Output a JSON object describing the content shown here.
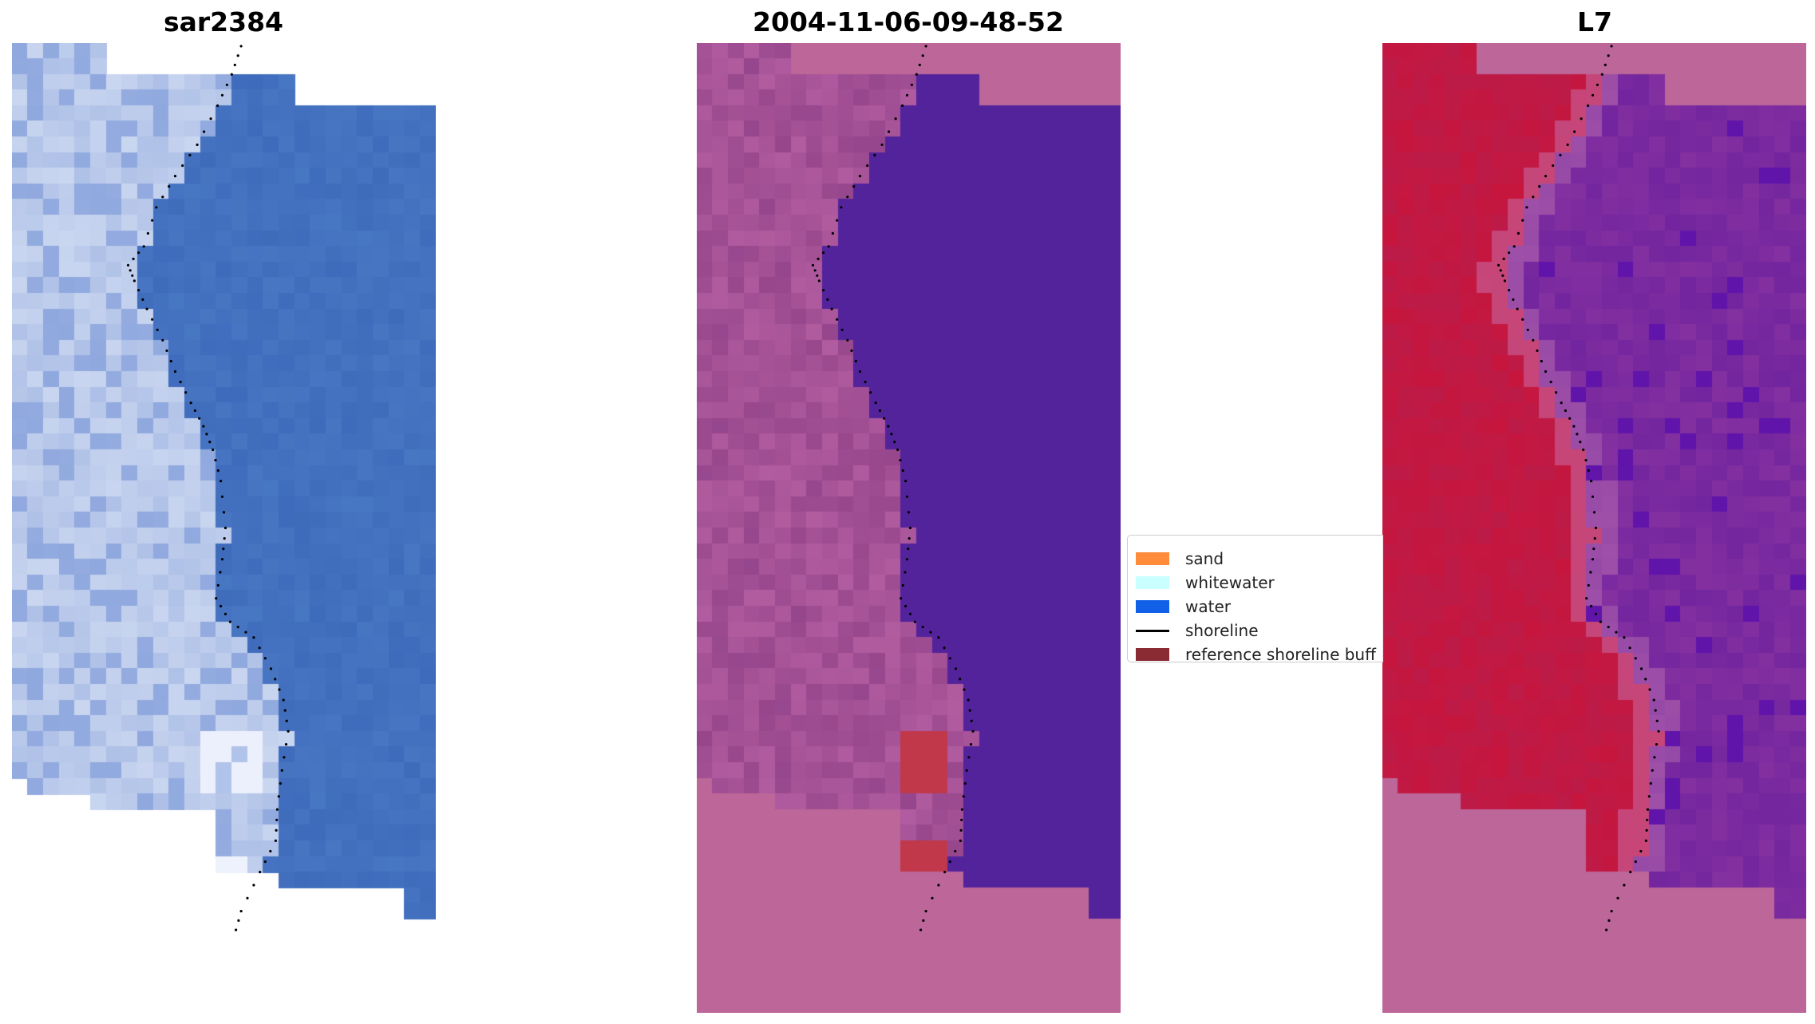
{
  "panels": [
    {
      "title": "sar2384",
      "kind": "rgb"
    },
    {
      "title": "2004-11-06-09-48-52",
      "kind": "classified"
    },
    {
      "title": "L7",
      "kind": "mndwi"
    }
  ],
  "legend": {
    "items": [
      {
        "label": "sand",
        "color": "#ff8c3a",
        "type": "patch"
      },
      {
        "label": "whitewater",
        "color": "#c9ffff",
        "type": "patch"
      },
      {
        "label": "water",
        "color": "#1060e8",
        "type": "patch"
      },
      {
        "label": "shoreline",
        "color": "#000000",
        "type": "line"
      },
      {
        "label": "reference shoreline buff",
        "color": "#8a2a33",
        "type": "patch"
      }
    ]
  },
  "colors": {
    "nodata": "#bc6699",
    "classified_water": "#53239b",
    "buffer_red": "#c0384a",
    "land_rgb": "#9ab0e0",
    "water_rgb": "#3e6bbb",
    "land_index": "#c01845",
    "water_index": "#8a2f9a"
  }
}
